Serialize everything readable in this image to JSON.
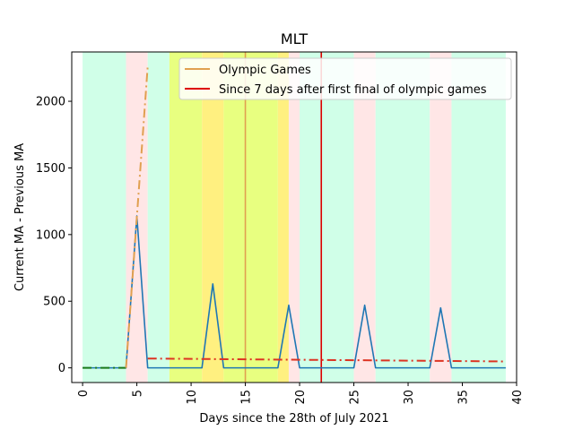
{
  "chart_data": {
    "type": "line",
    "title": "MLT",
    "xlabel": "Days since the 28th of July 2021",
    "ylabel": "Current MA - Previous MA",
    "xlim": [
      -1,
      40
    ],
    "ylim": [
      -110,
      2370
    ],
    "xticks": [
      0,
      5,
      10,
      15,
      20,
      25,
      30,
      35,
      40
    ],
    "yticks": [
      0,
      500,
      1000,
      1500,
      2000
    ],
    "grid": false,
    "legend_position": "top-right",
    "legend": [
      {
        "label": "Olympic Games",
        "color": "#e0a050"
      },
      {
        "label": "Since 7 days after first final of olympic games",
        "color": "#dd0000"
      }
    ],
    "background_bands": [
      {
        "x0": 0,
        "x1": 4,
        "color": "#d0ffe8"
      },
      {
        "x0": 4,
        "x1": 6,
        "color": "#ffe6e6"
      },
      {
        "x0": 6,
        "x1": 8,
        "color": "#d0ffe8"
      },
      {
        "x0": 8,
        "x1": 11,
        "color": "#e8ff80"
      },
      {
        "x0": 11,
        "x1": 13,
        "color": "#fff080"
      },
      {
        "x0": 13,
        "x1": 18,
        "color": "#e8ff80"
      },
      {
        "x0": 18,
        "x1": 19,
        "color": "#fff080"
      },
      {
        "x0": 19,
        "x1": 20,
        "color": "#ffe6e6"
      },
      {
        "x0": 20,
        "x1": 25,
        "color": "#d0ffe8"
      },
      {
        "x0": 25,
        "x1": 27,
        "color": "#ffe6e6"
      },
      {
        "x0": 27,
        "x1": 32,
        "color": "#d0ffe8"
      },
      {
        "x0": 32,
        "x1": 34,
        "color": "#ffe6e6"
      },
      {
        "x0": 34,
        "x1": 39,
        "color": "#d0ffe8"
      }
    ],
    "vertical_lines": [
      {
        "x": 15,
        "color": "#e0a050",
        "series": "Olympic Games"
      },
      {
        "x": 22,
        "color": "#dd0000",
        "series": "Since 7 days after first final of olympic games"
      }
    ],
    "series": [
      {
        "color": "#1f77b4",
        "style": "solid",
        "x": [
          0,
          1,
          2,
          3,
          4,
          5,
          6,
          7,
          8,
          9,
          10,
          11,
          12,
          13,
          14,
          15,
          16,
          17,
          18,
          19,
          20,
          21,
          22,
          23,
          24,
          25,
          26,
          27,
          28,
          29,
          30,
          31,
          32,
          33,
          34,
          35,
          36,
          37,
          38,
          39
        ],
        "values": [
          0,
          0,
          0,
          0,
          0,
          1140,
          0,
          0,
          0,
          0,
          0,
          0,
          630,
          0,
          0,
          0,
          0,
          0,
          0,
          470,
          0,
          0,
          0,
          0,
          0,
          0,
          470,
          0,
          0,
          0,
          0,
          0,
          0,
          450,
          0,
          0,
          0,
          0,
          0,
          0
        ]
      },
      {
        "color": "#1a7a1a",
        "style": "dashdot",
        "x": [
          0,
          4
        ],
        "values": [
          0,
          0
        ]
      },
      {
        "color": "#e0a050",
        "style": "dashdot",
        "x": [
          4,
          6
        ],
        "values": [
          0,
          2260
        ]
      },
      {
        "color": "#dd3322",
        "style": "dashdot",
        "x": [
          6,
          39
        ],
        "values": [
          70,
          48
        ]
      }
    ]
  }
}
